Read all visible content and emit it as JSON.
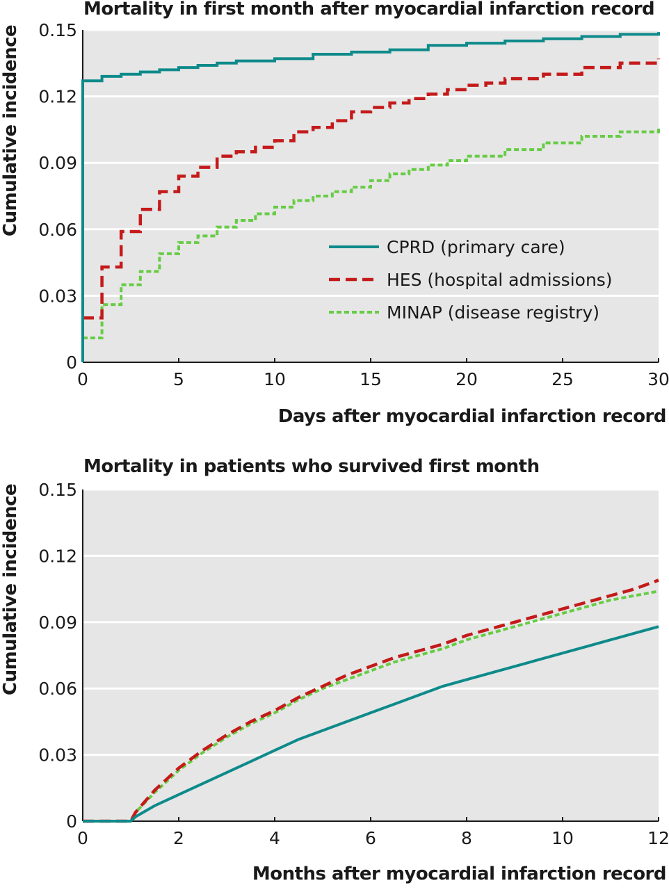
{
  "colors": {
    "cprd": "#0e8a8a",
    "hes": "#c41a1a",
    "minap": "#66cc44",
    "plot_bg": "#e6e6e6",
    "grid": "#ffffff"
  },
  "chart_data": [
    {
      "type": "line",
      "title": "Mortality in first month after myocardial infarction record",
      "xlabel": "Days after myocardial infarction record",
      "ylabel": "Cumulative incidence",
      "xlim": [
        0,
        30
      ],
      "ylim": [
        0,
        0.15
      ],
      "xticks": [
        "0",
        "5",
        "10",
        "15",
        "20",
        "25",
        "30"
      ],
      "xtick_values": [
        0,
        5,
        10,
        15,
        20,
        25,
        30
      ],
      "yticks": [
        "0",
        "0.03",
        "0.06",
        "0.09",
        "0.12",
        "0.15"
      ],
      "ytick_values": [
        0,
        0.03,
        0.06,
        0.09,
        0.12,
        0.15
      ],
      "grid": true,
      "legend_position": "lower-right",
      "series": [
        {
          "name": "CPRD (primary care)",
          "key": "cprd",
          "style": "solid",
          "step": true,
          "points": [
            [
              0,
              0
            ],
            [
              0,
              0.127
            ],
            [
              1,
              0.129
            ],
            [
              2,
              0.13
            ],
            [
              3,
              0.131
            ],
            [
              4,
              0.132
            ],
            [
              5,
              0.133
            ],
            [
              6,
              0.134
            ],
            [
              7,
              0.135
            ],
            [
              8,
              0.136
            ],
            [
              10,
              0.137
            ],
            [
              12,
              0.139
            ],
            [
              14,
              0.14
            ],
            [
              16,
              0.141
            ],
            [
              18,
              0.143
            ],
            [
              20,
              0.144
            ],
            [
              22,
              0.145
            ],
            [
              24,
              0.146
            ],
            [
              26,
              0.147
            ],
            [
              28,
              0.148
            ],
            [
              30,
              0.149
            ]
          ]
        },
        {
          "name": "HES (hospital admissions)",
          "key": "hes",
          "style": "dashed",
          "step": true,
          "points": [
            [
              0,
              0.02
            ],
            [
              1,
              0.043
            ],
            [
              2,
              0.059
            ],
            [
              3,
              0.069
            ],
            [
              4,
              0.077
            ],
            [
              5,
              0.084
            ],
            [
              6,
              0.088
            ],
            [
              7,
              0.093
            ],
            [
              8,
              0.095
            ],
            [
              9,
              0.097
            ],
            [
              10,
              0.1
            ],
            [
              11,
              0.104
            ],
            [
              12,
              0.106
            ],
            [
              13,
              0.109
            ],
            [
              14,
              0.113
            ],
            [
              15,
              0.115
            ],
            [
              16,
              0.117
            ],
            [
              17,
              0.119
            ],
            [
              18,
              0.121
            ],
            [
              19,
              0.123
            ],
            [
              20,
              0.125
            ],
            [
              21,
              0.126
            ],
            [
              22,
              0.128
            ],
            [
              24,
              0.13
            ],
            [
              26,
              0.133
            ],
            [
              28,
              0.135
            ],
            [
              30,
              0.137
            ]
          ]
        },
        {
          "name": "MINAP (disease registry)",
          "key": "minap",
          "style": "dotted",
          "step": true,
          "points": [
            [
              0,
              0.011
            ],
            [
              1,
              0.026
            ],
            [
              2,
              0.035
            ],
            [
              3,
              0.041
            ],
            [
              4,
              0.049
            ],
            [
              5,
              0.054
            ],
            [
              6,
              0.057
            ],
            [
              7,
              0.061
            ],
            [
              8,
              0.064
            ],
            [
              9,
              0.067
            ],
            [
              10,
              0.07
            ],
            [
              11,
              0.073
            ],
            [
              12,
              0.075
            ],
            [
              13,
              0.077
            ],
            [
              14,
              0.079
            ],
            [
              15,
              0.082
            ],
            [
              16,
              0.085
            ],
            [
              17,
              0.087
            ],
            [
              18,
              0.089
            ],
            [
              19,
              0.091
            ],
            [
              20,
              0.093
            ],
            [
              22,
              0.096
            ],
            [
              24,
              0.099
            ],
            [
              26,
              0.102
            ],
            [
              28,
              0.104
            ],
            [
              30,
              0.106
            ]
          ]
        }
      ]
    },
    {
      "type": "line",
      "title": "Mortality in patients who survived first month",
      "xlabel": "Months after myocardial infarction record",
      "ylabel": "Cumulative incidence",
      "xlim": [
        0,
        12
      ],
      "ylim": [
        0,
        0.15
      ],
      "xticks": [
        "0",
        "2",
        "4",
        "6",
        "8",
        "10",
        "12"
      ],
      "xtick_values": [
        0,
        2,
        4,
        6,
        8,
        10,
        12
      ],
      "yticks": [
        "0",
        "0.03",
        "0.06",
        "0.09",
        "0.12",
        "0.15"
      ],
      "ytick_values": [
        0,
        0.03,
        0.06,
        0.09,
        0.12,
        0.15
      ],
      "grid": true,
      "series": [
        {
          "key": "cprd",
          "style": "solid",
          "step": false,
          "points": [
            [
              0,
              0
            ],
            [
              1,
              0
            ],
            [
              1.1,
              0.002
            ],
            [
              1.5,
              0.007
            ],
            [
              2,
              0.012
            ],
            [
              2.5,
              0.017
            ],
            [
              3,
              0.022
            ],
            [
              3.5,
              0.027
            ],
            [
              4,
              0.032
            ],
            [
              4.5,
              0.037
            ],
            [
              5,
              0.041
            ],
            [
              5.5,
              0.045
            ],
            [
              6,
              0.049
            ],
            [
              6.5,
              0.053
            ],
            [
              7,
              0.057
            ],
            [
              7.5,
              0.061
            ],
            [
              8,
              0.064
            ],
            [
              8.5,
              0.067
            ],
            [
              9,
              0.07
            ],
            [
              9.5,
              0.073
            ],
            [
              10,
              0.076
            ],
            [
              10.5,
              0.079
            ],
            [
              11,
              0.082
            ],
            [
              11.5,
              0.085
            ],
            [
              12,
              0.088
            ]
          ]
        },
        {
          "key": "hes",
          "style": "dashed",
          "step": false,
          "points": [
            [
              0,
              0
            ],
            [
              1,
              0
            ],
            [
              1.1,
              0.004
            ],
            [
              1.5,
              0.014
            ],
            [
              2,
              0.024
            ],
            [
              2.5,
              0.032
            ],
            [
              3,
              0.039
            ],
            [
              3.5,
              0.045
            ],
            [
              4,
              0.05
            ],
            [
              4.5,
              0.056
            ],
            [
              5,
              0.061
            ],
            [
              5.5,
              0.066
            ],
            [
              6,
              0.07
            ],
            [
              6.5,
              0.074
            ],
            [
              7,
              0.077
            ],
            [
              7.5,
              0.08
            ],
            [
              8,
              0.084
            ],
            [
              8.5,
              0.087
            ],
            [
              9,
              0.09
            ],
            [
              9.5,
              0.093
            ],
            [
              10,
              0.096
            ],
            [
              10.5,
              0.099
            ],
            [
              11,
              0.102
            ],
            [
              11.5,
              0.105
            ],
            [
              12,
              0.109
            ]
          ]
        },
        {
          "key": "minap",
          "style": "dotted",
          "step": false,
          "points": [
            [
              0,
              0
            ],
            [
              1,
              0
            ],
            [
              1.1,
              0.004
            ],
            [
              1.5,
              0.013
            ],
            [
              2,
              0.023
            ],
            [
              2.5,
              0.031
            ],
            [
              3,
              0.038
            ],
            [
              3.5,
              0.044
            ],
            [
              4,
              0.049
            ],
            [
              4.5,
              0.055
            ],
            [
              5,
              0.06
            ],
            [
              5.5,
              0.064
            ],
            [
              6,
              0.068
            ],
            [
              6.5,
              0.072
            ],
            [
              7,
              0.075
            ],
            [
              7.5,
              0.078
            ],
            [
              8,
              0.082
            ],
            [
              8.5,
              0.085
            ],
            [
              9,
              0.088
            ],
            [
              9.5,
              0.091
            ],
            [
              10,
              0.094
            ],
            [
              10.5,
              0.097
            ],
            [
              11,
              0.1
            ],
            [
              11.5,
              0.102
            ],
            [
              12,
              0.104
            ]
          ]
        }
      ]
    }
  ]
}
